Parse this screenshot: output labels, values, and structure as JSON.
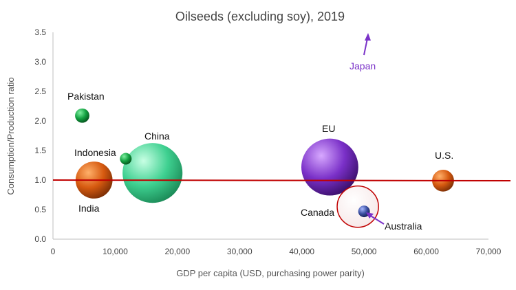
{
  "chart_data": {
    "type": "scatter",
    "subtype": "bubble",
    "title": "Oilseeds (excluding soy), 2019",
    "xlabel": "GDP per capita (USD, purchasing power parity)",
    "ylabel": "Consumption/Production ratio",
    "xlim": [
      0,
      70000
    ],
    "ylim": [
      0,
      3.5
    ],
    "x_ticks": [
      0,
      10000,
      20000,
      30000,
      40000,
      50000,
      60000,
      70000
    ],
    "x_tick_labels": [
      "0",
      "10,000",
      "20,000",
      "30,000",
      "40,000",
      "50,000",
      "60,000",
      "70,000"
    ],
    "y_ticks": [
      0,
      0.5,
      1.0,
      1.5,
      2.0,
      2.5,
      3.0,
      3.5
    ],
    "y_tick_labels": [
      "0.0",
      "0.5",
      "1.0",
      "1.5",
      "2.0",
      "2.5",
      "3.0",
      "3.5"
    ],
    "grid": false,
    "reference_line": {
      "y": 1.0,
      "color": "#c00000"
    },
    "points": [
      {
        "label": "Pakistan",
        "x": 4700,
        "y": 2.09,
        "size": 1.2,
        "color": "#1aa84a"
      },
      {
        "label": "India",
        "x": 6600,
        "y": 1.0,
        "size": 8.0,
        "color": "#e06a1a"
      },
      {
        "label": "Indonesia",
        "x": 11700,
        "y": 1.36,
        "size": 0.8,
        "color": "#1aa84a"
      },
      {
        "label": "China",
        "x": 16000,
        "y": 1.12,
        "size": 21.0,
        "color": "#3ecf8e"
      },
      {
        "label": "EU",
        "x": 44500,
        "y": 1.22,
        "size": 19.0,
        "color": "#7a32c8"
      },
      {
        "label": "Canada",
        "x": 49000,
        "y": 0.55,
        "size": 10.0,
        "color": "#ffffff",
        "outline": "#c00000"
      },
      {
        "label": "Australia",
        "x": 50000,
        "y": 0.47,
        "size": 0.8,
        "color": "#3a4fa0"
      },
      {
        "label": "U.S.",
        "x": 62700,
        "y": 0.99,
        "size": 2.8,
        "color": "#e06a1a"
      }
    ],
    "annotations": [
      {
        "text": "Japan",
        "note": "arrow pointing up: off-scale value above 3.5",
        "x": 50500,
        "color": "#7a32c8"
      },
      {
        "text": "Australia",
        "note": "arrow pointing to the Australia bubble",
        "color": "#7a32c8"
      }
    ]
  }
}
